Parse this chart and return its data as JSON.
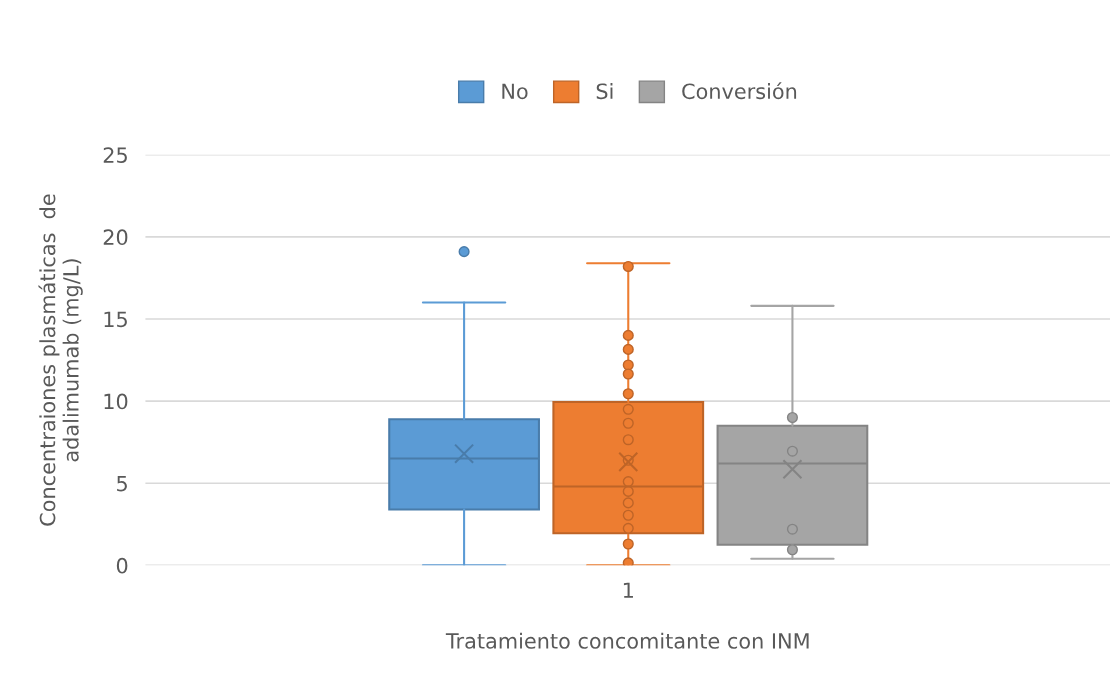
{
  "chart_data": {
    "type": "box",
    "xlabel": "Tratamiento concomitante con INM",
    "ylabel": "Concentraiones plasmáticas  de\nadalimumab (mg/L)",
    "categories": [
      "1"
    ],
    "ylim": [
      0,
      25
    ],
    "yticks": [
      0,
      5,
      10,
      15,
      20,
      25
    ],
    "grid": "y",
    "legend": "top",
    "series": [
      {
        "name": "No",
        "color": "#5b9bd5",
        "boxes": [
          {
            "low": 0,
            "q1": 3.4,
            "median": 6.5,
            "q3": 8.9,
            "high": 16.0,
            "mean": 6.8,
            "outliers": [
              19.1
            ]
          }
        ]
      },
      {
        "name": "Si",
        "color": "#ed7d31",
        "boxes": [
          {
            "low": 0,
            "q1": 1.95,
            "median": 4.8,
            "q3": 9.95,
            "high": 18.4,
            "mean": 6.3,
            "outliers": [
              18.2,
              14.0,
              13.15,
              12.2,
              11.65,
              10.45,
              9.5,
              8.65,
              7.65,
              6.4,
              5.1,
              4.5,
              3.8,
              3.05,
              2.25,
              1.3,
              0.15
            ]
          }
        ]
      },
      {
        "name": "Conversión",
        "color": "#a5a5a5",
        "boxes": [
          {
            "low": 0.4,
            "q1": 1.25,
            "median": 6.2,
            "q3": 8.5,
            "high": 15.8,
            "mean": 5.85,
            "outliers": [
              9.0,
              6.95,
              2.2,
              0.95
            ]
          }
        ]
      }
    ]
  }
}
